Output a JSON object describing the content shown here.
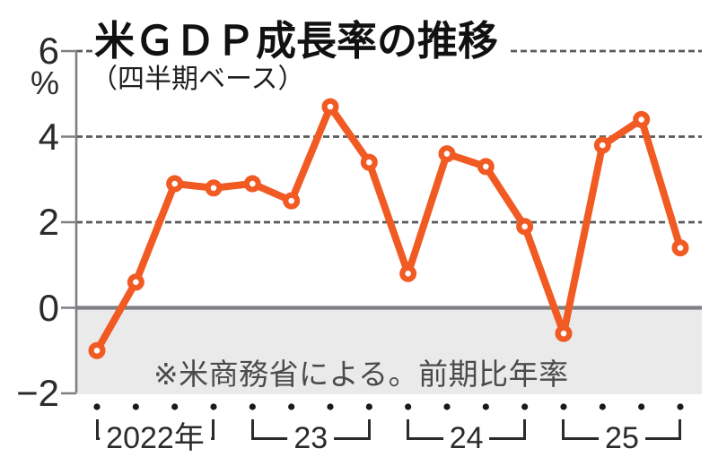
{
  "header": {
    "title": "米ＧＤＰ成長率の推移",
    "subtitle": "（四半期ベース）"
  },
  "note": "※米商務省による。前期比年率",
  "colors": {
    "line": "#f15a22",
    "marker_fill": "#ffffff",
    "grid": "#5a5a5a",
    "axis": "#7d7f83",
    "negative_area": "#eaeaeb",
    "quarter_dot": "#1a1a1a",
    "text_dark": "#2b2b2b",
    "note_text": "#4b4b4b"
  },
  "y_axis": {
    "unit": "%",
    "ticks": [
      {
        "value": 6,
        "label": "6"
      },
      {
        "value": 4,
        "label": "4"
      },
      {
        "value": 2,
        "label": "2"
      },
      {
        "value": 0,
        "label": "0"
      },
      {
        "value": -2,
        "label": "−2"
      }
    ]
  },
  "x_axis": {
    "years": [
      {
        "label": "2022年",
        "quarters": 4
      },
      {
        "label": "23",
        "quarters": 4
      },
      {
        "label": "24",
        "quarters": 4
      },
      {
        "label": "25",
        "quarters": 4
      }
    ]
  },
  "chart_data": {
    "type": "line",
    "title": "米ＧＤＰ成長率の推移（四半期ベース）",
    "ylabel": "%",
    "ylim": [
      -2,
      6
    ],
    "grid": "dashed horizontal at 2, 4, 6; solid zero line; shaded area below 0",
    "legend": "none",
    "source_note": "※米商務省による。前期比年率",
    "x": [
      "2022Q1",
      "2022Q2",
      "2022Q3",
      "2022Q4",
      "2023Q1",
      "2023Q2",
      "2023Q3",
      "2023Q4",
      "2024Q1",
      "2024Q2",
      "2024Q3",
      "2024Q4",
      "2025Q1",
      "2025Q2",
      "2025Q3",
      "2025Q4"
    ],
    "values": [
      -1.0,
      0.6,
      2.9,
      2.8,
      2.9,
      2.5,
      4.7,
      3.4,
      0.8,
      3.6,
      3.3,
      1.9,
      -0.6,
      3.8,
      4.4,
      1.4
    ]
  }
}
